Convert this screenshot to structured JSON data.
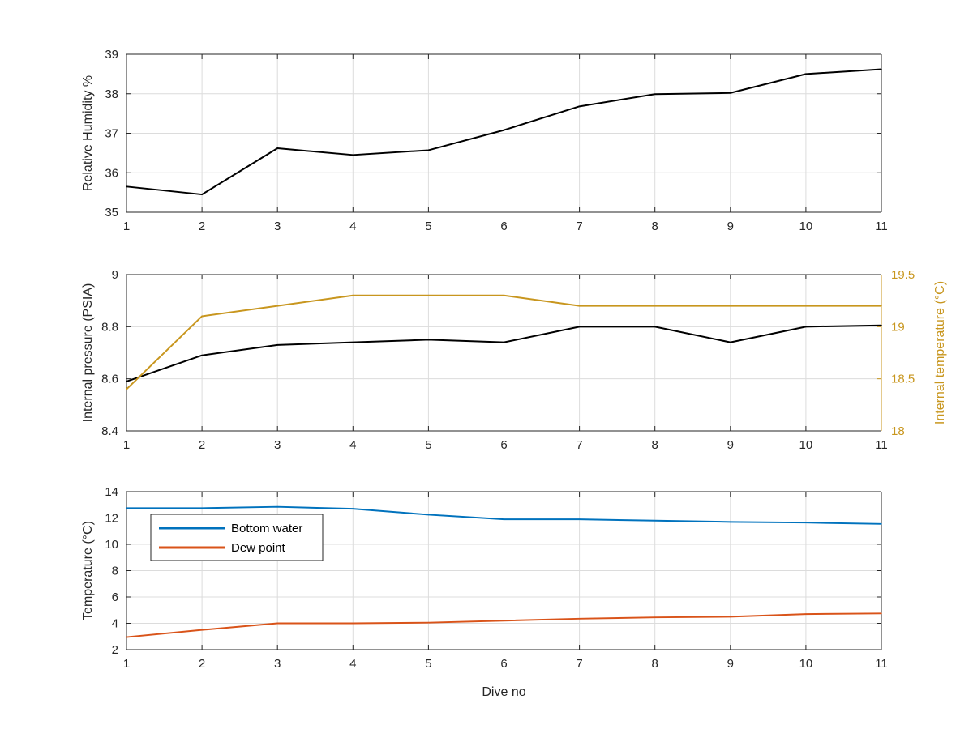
{
  "colors": {
    "black": "#000000",
    "blue": "#0072BD",
    "orange": "#D95319",
    "gold": "#C8961E",
    "axis": "#262626",
    "grid": "#dcdcdc"
  },
  "chart_data": [
    {
      "type": "line",
      "xlabel": "",
      "ylabel": "Relative Humidity %",
      "xlim": [
        1,
        11
      ],
      "ylim": [
        35,
        39
      ],
      "xticks": [
        "1",
        "2",
        "3",
        "4",
        "5",
        "6",
        "7",
        "8",
        "9",
        "10",
        "11"
      ],
      "yticks": [
        "35",
        "36",
        "37",
        "38",
        "39"
      ],
      "grid": true,
      "series": [
        {
          "color": "#000000",
          "x": [
            1,
            2,
            3,
            4,
            5,
            6,
            7,
            8,
            9,
            10,
            11
          ],
          "values": [
            35.65,
            35.45,
            36.62,
            36.45,
            36.57,
            37.08,
            37.68,
            37.99,
            38.02,
            38.5,
            38.62
          ]
        }
      ]
    },
    {
      "type": "line",
      "xlabel": "",
      "ylabel": "Internal pressure (PSIA)",
      "ylabel_right": "Internal temperature (°C)",
      "xlim": [
        1,
        11
      ],
      "ylim": [
        8.4,
        9
      ],
      "ylim_right": [
        18,
        19.5
      ],
      "xticks": [
        "1",
        "2",
        "3",
        "4",
        "5",
        "6",
        "7",
        "8",
        "9",
        "10",
        "11"
      ],
      "yticks": [
        "8.4",
        "8.6",
        "8.8",
        "9"
      ],
      "yticks_right": [
        "18",
        "18.5",
        "19",
        "19.5"
      ],
      "grid": true,
      "series": [
        {
          "axis": "left",
          "color": "#000000",
          "x": [
            1,
            2,
            3,
            4,
            5,
            6,
            7,
            8,
            9,
            10,
            11
          ],
          "values": [
            8.59,
            8.69,
            8.73,
            8.74,
            8.75,
            8.74,
            8.8,
            8.8,
            8.74,
            8.8,
            8.805
          ]
        },
        {
          "axis": "right",
          "color": "#C8961E",
          "x": [
            1,
            2,
            3,
            4,
            5,
            6,
            7,
            8,
            9,
            10,
            11
          ],
          "values": [
            18.4,
            19.1,
            19.2,
            19.3,
            19.3,
            19.3,
            19.2,
            19.2,
            19.2,
            19.2,
            19.2
          ]
        }
      ]
    },
    {
      "type": "line",
      "xlabel": "Dive no",
      "ylabel": "Temperature (°C)",
      "xlim": [
        1,
        11
      ],
      "ylim": [
        2,
        14
      ],
      "xticks": [
        "1",
        "2",
        "3",
        "4",
        "5",
        "6",
        "7",
        "8",
        "9",
        "10",
        "11"
      ],
      "yticks": [
        "2",
        "4",
        "6",
        "8",
        "10",
        "12",
        "14"
      ],
      "grid": true,
      "legend": "top-left",
      "series": [
        {
          "name": "Bottom water",
          "color": "#0072BD",
          "x": [
            1,
            2,
            3,
            4,
            5,
            6,
            7,
            8,
            9,
            10,
            11
          ],
          "values": [
            12.75,
            12.75,
            12.85,
            12.7,
            12.25,
            11.9,
            11.9,
            11.8,
            11.7,
            11.65,
            11.55
          ]
        },
        {
          "name": "Dew point",
          "color": "#D95319",
          "x": [
            1,
            2,
            3,
            4,
            5,
            6,
            7,
            8,
            9,
            10,
            11
          ],
          "values": [
            2.95,
            3.5,
            4.0,
            4.0,
            4.05,
            4.2,
            4.35,
            4.45,
            4.5,
            4.7,
            4.75
          ]
        }
      ]
    }
  ]
}
